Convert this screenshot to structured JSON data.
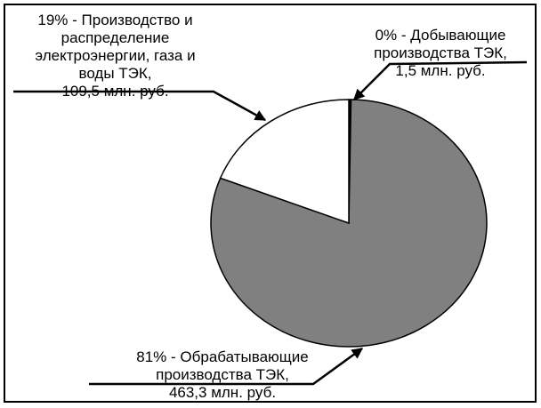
{
  "chart_data": {
    "type": "pie",
    "categories": [
      "Добывающие производства ТЭК,",
      "Обрабатывающие производства ТЭК,",
      "Производство и распределение электроэнергии, газа и воды ТЭК,"
    ],
    "values": [
      1.5,
      463.3,
      109.5
    ],
    "value_labels": [
      "1,5 млн. руб.",
      "463,3 млн. руб.",
      "109,5 млн. руб."
    ],
    "percent_labels": [
      "0% -",
      "81% -",
      "19% -"
    ],
    "colors": [
      "#000000",
      "#808080",
      "#ffffff"
    ]
  }
}
